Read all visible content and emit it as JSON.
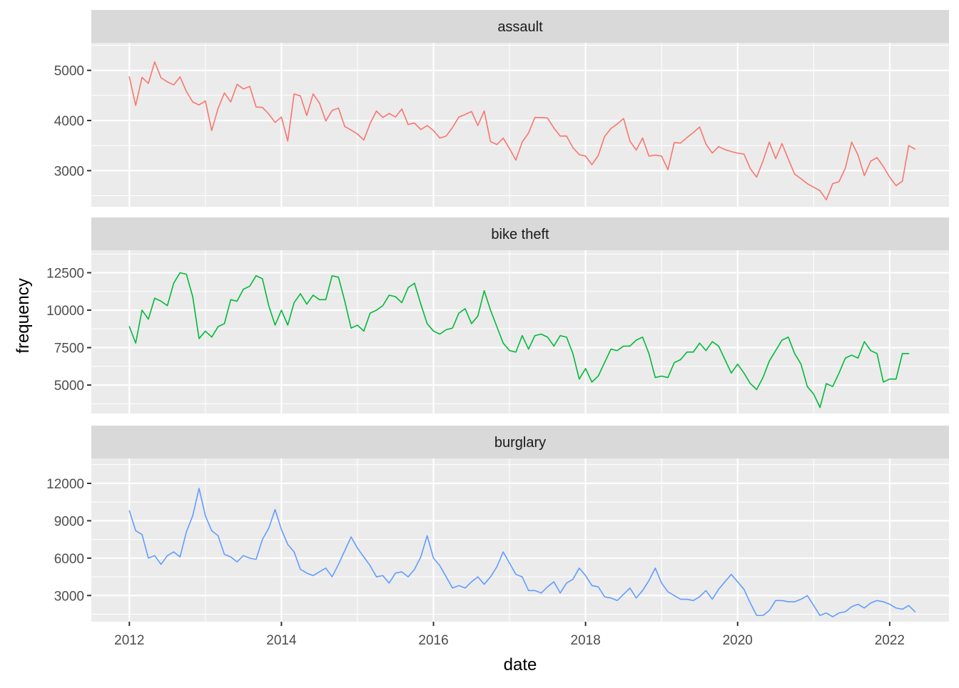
{
  "chart_data": {
    "type": "line",
    "xlabel": "date",
    "ylabel": "frequency",
    "x_axis": {
      "lim": [
        2011.5,
        2022.78
      ],
      "ticks": [
        2012,
        2014,
        2016,
        2018,
        2020,
        2022
      ],
      "tick_labels": [
        "2012",
        "2014",
        "2016",
        "2018",
        "2020",
        "2022"
      ]
    },
    "x_start": "2012-01",
    "x_step": "1 month",
    "grid": true,
    "legend": "none",
    "facets": [
      {
        "name": "assault",
        "color": "#F8766D",
        "ylim": [
          2280,
          5550
        ],
        "yticks": [
          3000,
          4000,
          5000
        ],
        "ytick_labels": [
          "3000",
          "4000",
          "5000"
        ],
        "values": [
          4870,
          4300,
          4860,
          4740,
          5170,
          4850,
          4770,
          4710,
          4870,
          4580,
          4370,
          4310,
          4390,
          3800,
          4240,
          4550,
          4370,
          4720,
          4630,
          4680,
          4270,
          4260,
          4130,
          3960,
          4070,
          3590,
          4530,
          4490,
          4100,
          4530,
          4350,
          3990,
          4200,
          4250,
          3880,
          3810,
          3730,
          3610,
          3940,
          4190,
          4060,
          4140,
          4070,
          4230,
          3920,
          3950,
          3820,
          3900,
          3800,
          3650,
          3690,
          3860,
          4070,
          4120,
          4180,
          3900,
          4190,
          3580,
          3520,
          3650,
          3440,
          3210,
          3570,
          3750,
          4060,
          4060,
          4050,
          3850,
          3690,
          3690,
          3460,
          3320,
          3290,
          3120,
          3300,
          3680,
          3840,
          3930,
          4040,
          3590,
          3410,
          3650,
          3290,
          3310,
          3290,
          3020,
          3560,
          3550,
          3660,
          3760,
          3870,
          3530,
          3350,
          3480,
          3420,
          3380,
          3350,
          3330,
          3040,
          2870,
          3190,
          3570,
          3240,
          3540,
          3230,
          2930,
          2840,
          2740,
          2670,
          2600,
          2420,
          2740,
          2780,
          3050,
          3570,
          3310,
          2900,
          3190,
          3260,
          3080,
          2870,
          2700,
          2790,
          3500,
          3430
        ]
      },
      {
        "name": "bike theft",
        "color": "#00BA38",
        "ylim": [
          3100,
          14000
        ],
        "yticks": [
          5000,
          7500,
          10000,
          12500
        ],
        "ytick_labels": [
          "5000",
          "7500",
          "10000",
          "12500"
        ],
        "values": [
          8900,
          7800,
          10000,
          9400,
          10800,
          10600,
          10300,
          11800,
          12500,
          12400,
          10900,
          8100,
          8600,
          8200,
          8900,
          9100,
          10700,
          10600,
          11400,
          11600,
          12300,
          12100,
          10300,
          9000,
          10000,
          9000,
          10500,
          11100,
          10400,
          11000,
          10700,
          10700,
          12300,
          12200,
          10600,
          8800,
          9000,
          8600,
          9800,
          10000,
          10300,
          11000,
          10900,
          10500,
          11500,
          11800,
          10400,
          9100,
          8600,
          8400,
          8700,
          8800,
          9800,
          10100,
          9100,
          9600,
          11300,
          10000,
          8900,
          7800,
          7300,
          7200,
          8300,
          7400,
          8300,
          8400,
          8200,
          7600,
          8300,
          8200,
          7100,
          5400,
          6100,
          5200,
          5600,
          6500,
          7400,
          7300,
          7600,
          7600,
          8000,
          8200,
          7100,
          5500,
          5600,
          5500,
          6500,
          6700,
          7200,
          7200,
          7800,
          7300,
          7900,
          7600,
          6700,
          5800,
          6400,
          5800,
          5100,
          4700,
          5500,
          6600,
          7300,
          8000,
          8200,
          7100,
          6400,
          4900,
          4400,
          3500,
          5100,
          4900,
          5800,
          6800,
          7000,
          6800,
          7900,
          7300,
          7100,
          5200,
          5400,
          5400,
          7100,
          7100
        ]
      },
      {
        "name": "burglary",
        "color": "#619CFF",
        "ylim": [
          900,
          14000
        ],
        "yticks": [
          3000,
          6000,
          9000,
          12000
        ],
        "ytick_labels": [
          "3000",
          "6000",
          "9000",
          "12000"
        ],
        "values": [
          9800,
          8200,
          7900,
          6000,
          6200,
          5500,
          6200,
          6500,
          6100,
          8100,
          9400,
          11600,
          9400,
          8200,
          7800,
          6300,
          6100,
          5700,
          6200,
          6000,
          5900,
          7500,
          8400,
          9900,
          8300,
          7100,
          6500,
          5100,
          4800,
          4600,
          4900,
          5200,
          4500,
          5500,
          6600,
          7700,
          6800,
          6100,
          5400,
          4500,
          4600,
          4000,
          4800,
          4900,
          4500,
          5100,
          6100,
          7800,
          6000,
          5400,
          4500,
          3600,
          3800,
          3600,
          4100,
          4500,
          3900,
          4500,
          5300,
          6500,
          5600,
          4700,
          4500,
          3400,
          3400,
          3200,
          3700,
          4100,
          3200,
          4000,
          4300,
          5200,
          4600,
          3800,
          3700,
          2900,
          2800,
          2600,
          3100,
          3600,
          2800,
          3400,
          4200,
          5200,
          4000,
          3300,
          3000,
          2700,
          2700,
          2600,
          2900,
          3400,
          2700,
          3500,
          4100,
          4700,
          4100,
          3500,
          2400,
          1400,
          1400,
          1800,
          2600,
          2600,
          2500,
          2500,
          2700,
          3000,
          2200,
          1400,
          1600,
          1300,
          1600,
          1700,
          2100,
          2300,
          2000,
          2400,
          2600,
          2500,
          2300,
          2000,
          1900,
          2200,
          1700
        ]
      }
    ]
  }
}
